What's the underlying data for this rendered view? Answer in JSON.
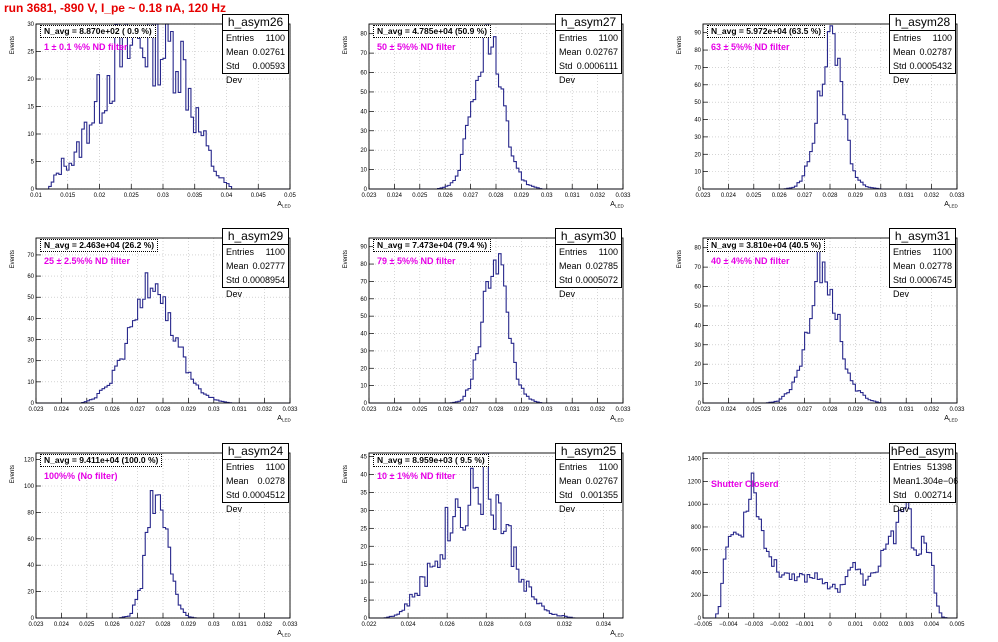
{
  "run_title": "run 3681,  -890 V, I_pe ~ 0.18 nA, 120 Hz",
  "stat_labels": {
    "entries": "Entries",
    "mean": "Mean",
    "stddev": "Std Dev"
  },
  "colors": {
    "hist_line": "#28288c",
    "title": "#e60000",
    "note": "#e600e6"
  },
  "chart_data": [
    {
      "type": "bar",
      "name": "h_asym26",
      "ylabel": "Events",
      "xlabel_main": "A",
      "xlabel_sub": "LED",
      "navg": "N_avg = 8.870e+02 ( 0.9 %)",
      "note": "1 ± 0.1 %% ND filter",
      "entries": "1100",
      "mean": "0.02761",
      "stddev": "0.00593",
      "xlim": [
        0.01,
        0.05
      ],
      "ylim": [
        0,
        30
      ],
      "xticks": [
        "0.01",
        "0.015",
        "0.02",
        "0.025",
        "0.03",
        "0.035",
        "0.04",
        "0.045",
        "0.05"
      ],
      "yticks": [
        "0",
        "5",
        "10",
        "15",
        "20",
        "25",
        "30"
      ],
      "profile": [
        [
          0.0105,
          0
        ],
        [
          0.012,
          0
        ],
        [
          0.013,
          2
        ],
        [
          0.0145,
          5
        ],
        [
          0.016,
          5
        ],
        [
          0.017,
          8
        ],
        [
          0.0185,
          13
        ],
        [
          0.02,
          16
        ],
        [
          0.021,
          20
        ],
        [
          0.022,
          22
        ],
        [
          0.023,
          24
        ],
        [
          0.024,
          24
        ],
        [
          0.025,
          26
        ],
        [
          0.026,
          27
        ],
        [
          0.027,
          28
        ],
        [
          0.028,
          28
        ],
        [
          0.029,
          29
        ],
        [
          0.03,
          26
        ],
        [
          0.031,
          25
        ],
        [
          0.032,
          27
        ],
        [
          0.033,
          23
        ],
        [
          0.034,
          19
        ],
        [
          0.035,
          14
        ],
        [
          0.036,
          10
        ],
        [
          0.037,
          7
        ],
        [
          0.038,
          4
        ],
        [
          0.039,
          2
        ],
        [
          0.04,
          1
        ],
        [
          0.041,
          0
        ],
        [
          0.0425,
          0
        ]
      ],
      "noise": 0.35
    },
    {
      "type": "bar",
      "name": "h_asym27",
      "ylabel": "Events",
      "xlabel_main": "A",
      "xlabel_sub": "LED",
      "navg": "N_avg = 4.785e+04 (50.9 %)",
      "note": "50 ± 5%% ND filter",
      "entries": "1100",
      "mean": "0.02767",
      "stddev": "0.0006111",
      "xlim": [
        0.023,
        0.033
      ],
      "ylim": [
        0,
        85
      ],
      "xticks": [
        "0.023",
        "0.024",
        "0.025",
        "0.026",
        "0.027",
        "0.028",
        "0.029",
        "0.03",
        "0.031",
        "0.032",
        "0.033"
      ],
      "yticks": [
        "0",
        "10",
        "20",
        "30",
        "40",
        "50",
        "60",
        "70",
        "80"
      ],
      "profile": [
        [
          0.0257,
          0
        ],
        [
          0.0262,
          2
        ],
        [
          0.0265,
          8
        ],
        [
          0.0268,
          25
        ],
        [
          0.0272,
          50
        ],
        [
          0.0275,
          75
        ],
        [
          0.0277,
          78
        ],
        [
          0.028,
          65
        ],
        [
          0.0283,
          40
        ],
        [
          0.0286,
          20
        ],
        [
          0.029,
          6
        ],
        [
          0.0293,
          2
        ],
        [
          0.0298,
          0
        ]
      ],
      "noise": 0.18
    },
    {
      "type": "bar",
      "name": "h_asym28",
      "ylabel": "Events",
      "xlabel_main": "A",
      "xlabel_sub": "LED",
      "navg": "N_avg = 5.972e+04 (63.5 %)",
      "note": "63 ± 5%% ND filter",
      "entries": "1100",
      "mean": "0.02787",
      "stddev": "0.0005432",
      "xlim": [
        0.023,
        0.033
      ],
      "ylim": [
        0,
        95
      ],
      "xticks": [
        "0.023",
        "0.024",
        "0.025",
        "0.026",
        "0.027",
        "0.028",
        "0.029",
        "0.03",
        "0.031",
        "0.032",
        "0.033"
      ],
      "yticks": [
        "0",
        "10",
        "20",
        "30",
        "40",
        "50",
        "60",
        "70",
        "80",
        "90"
      ],
      "profile": [
        [
          0.0262,
          0
        ],
        [
          0.0266,
          1
        ],
        [
          0.027,
          8
        ],
        [
          0.0274,
          35
        ],
        [
          0.0278,
          75
        ],
        [
          0.0281,
          85
        ],
        [
          0.0284,
          60
        ],
        [
          0.0288,
          20
        ],
        [
          0.0291,
          5
        ],
        [
          0.0295,
          1
        ],
        [
          0.03,
          0
        ]
      ],
      "noise": 0.18
    },
    {
      "type": "bar",
      "name": "h_asym29",
      "ylabel": "Events",
      "xlabel_main": "A",
      "xlabel_sub": "LED",
      "navg": "N_avg = 2.463e+04 (26.2 %)",
      "note": "25 ± 2.5%% ND filter",
      "entries": "1100",
      "mean": "0.02777",
      "stddev": "0.0008954",
      "xlim": [
        0.023,
        0.033
      ],
      "ylim": [
        0,
        78
      ],
      "xticks": [
        "0.023",
        "0.024",
        "0.025",
        "0.026",
        "0.027",
        "0.028",
        "0.029",
        "0.03",
        "0.031",
        "0.032",
        "0.033"
      ],
      "yticks": [
        "0",
        "10",
        "20",
        "30",
        "40",
        "50",
        "60",
        "70"
      ],
      "profile": [
        [
          0.0248,
          0
        ],
        [
          0.0253,
          2
        ],
        [
          0.0258,
          8
        ],
        [
          0.0263,
          18
        ],
        [
          0.0268,
          35
        ],
        [
          0.0273,
          55
        ],
        [
          0.0276,
          65
        ],
        [
          0.028,
          50
        ],
        [
          0.0285,
          30
        ],
        [
          0.029,
          15
        ],
        [
          0.0295,
          5
        ],
        [
          0.0302,
          1
        ],
        [
          0.0307,
          0
        ]
      ],
      "noise": 0.2
    },
    {
      "type": "bar",
      "name": "h_asym30",
      "ylabel": "Events",
      "xlabel_main": "A",
      "xlabel_sub": "LED",
      "navg": "N_avg = 7.473e+04 (79.4 %)",
      "note": "79 ± 5%% ND filter",
      "entries": "1100",
      "mean": "0.02785",
      "stddev": "0.0005072",
      "xlim": [
        0.023,
        0.033
      ],
      "ylim": [
        0,
        95
      ],
      "xticks": [
        "0.023",
        "0.024",
        "0.025",
        "0.026",
        "0.027",
        "0.028",
        "0.029",
        "0.03",
        "0.031",
        "0.032",
        "0.033"
      ],
      "yticks": [
        "0",
        "10",
        "20",
        "30",
        "40",
        "50",
        "60",
        "70",
        "80",
        "90"
      ],
      "profile": [
        [
          0.0262,
          0
        ],
        [
          0.0266,
          1
        ],
        [
          0.027,
          10
        ],
        [
          0.0274,
          40
        ],
        [
          0.0278,
          80
        ],
        [
          0.0281,
          88
        ],
        [
          0.0284,
          55
        ],
        [
          0.0288,
          18
        ],
        [
          0.0291,
          5
        ],
        [
          0.0295,
          1
        ],
        [
          0.0298,
          0
        ]
      ],
      "noise": 0.18
    },
    {
      "type": "bar",
      "name": "h_asym31",
      "ylabel": "Events",
      "xlabel_main": "A",
      "xlabel_sub": "LED",
      "navg": "N_avg = 3.810e+04 (40.5 %)",
      "note": "40 ± 4%% ND filter",
      "entries": "1100",
      "mean": "0.02778",
      "stddev": "0.0006745",
      "xlim": [
        0.023,
        0.033
      ],
      "ylim": [
        0,
        85
      ],
      "xticks": [
        "0.023",
        "0.024",
        "0.025",
        "0.026",
        "0.027",
        "0.028",
        "0.029",
        "0.03",
        "0.031",
        "0.032",
        "0.033"
      ],
      "yticks": [
        "0",
        "10",
        "20",
        "30",
        "40",
        "50",
        "60",
        "70",
        "80"
      ],
      "profile": [
        [
          0.0255,
          0
        ],
        [
          0.026,
          1
        ],
        [
          0.0265,
          8
        ],
        [
          0.027,
          30
        ],
        [
          0.0274,
          60
        ],
        [
          0.0278,
          75
        ],
        [
          0.0282,
          50
        ],
        [
          0.0286,
          22
        ],
        [
          0.029,
          7
        ],
        [
          0.0295,
          2
        ],
        [
          0.03,
          0
        ]
      ],
      "noise": 0.2
    },
    {
      "type": "bar",
      "name": "h_asym24",
      "ylabel": "Events",
      "xlabel_main": "A",
      "xlabel_sub": "LED",
      "navg": "N_avg = 9.411e+04 (100.0 %)",
      "note": "100%% (No filter)",
      "entries": "1100",
      "mean": "0.0278",
      "stddev": "0.0004512",
      "xlim": [
        0.023,
        0.033
      ],
      "ylim": [
        0,
        125
      ],
      "xticks": [
        "0.023",
        "0.024",
        "0.025",
        "0.026",
        "0.027",
        "0.028",
        "0.029",
        "0.03",
        "0.031",
        "0.032",
        "0.033"
      ],
      "yticks": [
        "0",
        "20",
        "40",
        "60",
        "80",
        "100",
        "120"
      ],
      "profile": [
        [
          0.0263,
          0
        ],
        [
          0.0267,
          2
        ],
        [
          0.0271,
          20
        ],
        [
          0.0275,
          80
        ],
        [
          0.0278,
          110
        ],
        [
          0.0281,
          80
        ],
        [
          0.0284,
          30
        ],
        [
          0.0287,
          8
        ],
        [
          0.029,
          1
        ],
        [
          0.0293,
          0
        ]
      ],
      "noise": 0.2
    },
    {
      "type": "bar",
      "name": "h_asym25",
      "ylabel": "Events",
      "xlabel_main": "A",
      "xlabel_sub": "LED",
      "navg": "N_avg = 8.959e+03 ( 9.5 %)",
      "note": "10 ± 1%% ND filter",
      "entries": "1100",
      "mean": "0.02767",
      "stddev": "0.001355",
      "xlim": [
        0.022,
        0.035
      ],
      "ylim": [
        0,
        46
      ],
      "xticks": [
        "0.022",
        "0.024",
        "0.026",
        "0.028",
        "0.03",
        "0.032",
        "0.034"
      ],
      "yticks": [
        "0",
        "5",
        "10",
        "15",
        "20",
        "25",
        "30",
        "35",
        "40",
        "45"
      ],
      "profile": [
        [
          0.0228,
          0
        ],
        [
          0.0235,
          1
        ],
        [
          0.024,
          4
        ],
        [
          0.0248,
          10
        ],
        [
          0.0255,
          18
        ],
        [
          0.026,
          25
        ],
        [
          0.0265,
          30
        ],
        [
          0.027,
          34
        ],
        [
          0.0275,
          37
        ],
        [
          0.028,
          38
        ],
        [
          0.0285,
          32
        ],
        [
          0.029,
          24
        ],
        [
          0.0295,
          16
        ],
        [
          0.03,
          10
        ],
        [
          0.0305,
          5
        ],
        [
          0.031,
          2
        ],
        [
          0.0315,
          1
        ],
        [
          0.032,
          0.5
        ],
        [
          0.0325,
          0
        ]
      ],
      "noise": 0.3
    },
    {
      "type": "bar",
      "name": "hPed_asym",
      "ylabel": "",
      "xlabel_main": "",
      "xlabel_sub": "",
      "navg": "",
      "note": "Shutter Closerd",
      "entries": "51398",
      "mean": "1.304e−06",
      "stddev": "0.002714",
      "xlim": [
        -0.005,
        0.005
      ],
      "ylim": [
        0,
        1450
      ],
      "xticks": [
        "−0.005",
        "−0.004",
        "−0.003",
        "−0.002",
        "−0.001",
        "0",
        "0.001",
        "0.002",
        "0.003",
        "0.004",
        "0.005"
      ],
      "yticks": [
        "0",
        "200",
        "400",
        "600",
        "800",
        "1000",
        "1200",
        "1400"
      ],
      "profile": [
        [
          -0.0045,
          0
        ],
        [
          -0.0043,
          150
        ],
        [
          -0.0041,
          700
        ],
        [
          -0.0038,
          750
        ],
        [
          -0.0035,
          700
        ],
        [
          -0.0033,
          1000
        ],
        [
          -0.003,
          1250
        ],
        [
          -0.0028,
          900
        ],
        [
          -0.0025,
          600
        ],
        [
          -0.002,
          400
        ],
        [
          -0.0015,
          380
        ],
        [
          -0.001,
          350
        ],
        [
          -0.0005,
          380
        ],
        [
          0,
          280
        ],
        [
          0.0004,
          250
        ],
        [
          0.0008,
          450
        ],
        [
          0.001,
          450
        ],
        [
          0.0014,
          300
        ],
        [
          0.0018,
          400
        ],
        [
          0.0022,
          650
        ],
        [
          0.0026,
          750
        ],
        [
          0.0029,
          1000
        ],
        [
          0.0031,
          950
        ],
        [
          0.0033,
          600
        ],
        [
          0.0035,
          600
        ],
        [
          0.0038,
          700
        ],
        [
          0.004,
          500
        ],
        [
          0.0042,
          150
        ],
        [
          0.0044,
          10
        ],
        [
          0.0046,
          0
        ]
      ],
      "noise": 0.12
    }
  ]
}
